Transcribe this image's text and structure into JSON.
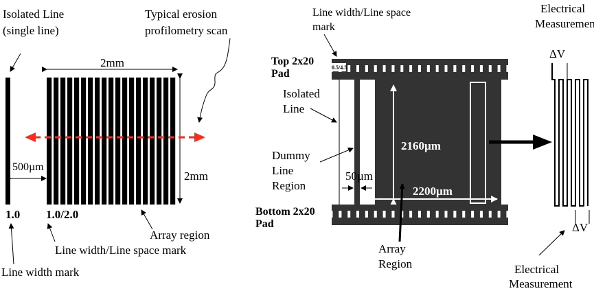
{
  "left_panel": {
    "isolated_line_label": [
      "Isolated Line",
      "(single line)"
    ],
    "scan_label": [
      "Typical erosion",
      "profilometry scan"
    ],
    "width_dim": "2mm",
    "height_dim": "2mm",
    "spacing_dim": "500µm",
    "isolated_mark": "1.0",
    "array_mark": "1.0/2.0",
    "array_region_label": "Array region",
    "linespace_mark_label": "Line width/Line space mark",
    "linewidth_mark_label": "Line width mark",
    "scan_color": "#ff2a1a"
  },
  "right_panel": {
    "linespace_mark_label": [
      "Line width/Line space",
      "mark"
    ],
    "mark_value": "0.5/4.5",
    "top_pad_label": [
      "Top 2x20",
      "Pad"
    ],
    "isolated_line_label": [
      "Isolated",
      "Line"
    ],
    "dummy_region_label": [
      "Dummy",
      "Line",
      "Region"
    ],
    "height_dim": "2160µm",
    "width_dim": "2200µm",
    "gap_dim": "50µm",
    "bottom_pad_label": [
      "Bottom 2x20",
      "Pad"
    ],
    "array_region_label": [
      "Array",
      "Region"
    ],
    "measurement_top": [
      "Electrical",
      "Measurement"
    ],
    "measurement_bottom": [
      "Electrical",
      "Measurement"
    ],
    "delta_v": "ΔV"
  }
}
